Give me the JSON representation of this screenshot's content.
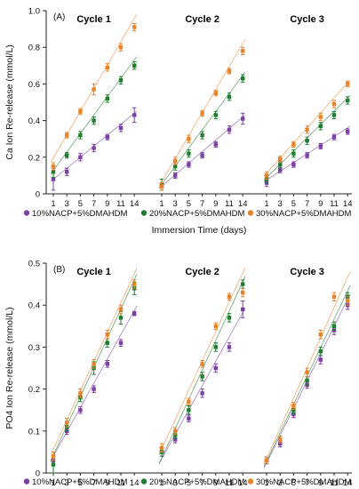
{
  "chart_data": [
    {
      "type": "scatter",
      "panel_label": "(A)",
      "ylabel": "Ca Ion Re-release (mmol/L)",
      "xlabel": "Immersion Time (days)",
      "ylim": [
        0,
        1
      ],
      "yticks": [
        "0",
        "0.2",
        "0.4",
        "0.6",
        "0.8",
        "1.0"
      ],
      "xtick_labels": [
        "1",
        "3",
        "5",
        "7",
        "9",
        "11",
        "14"
      ],
      "grid": false,
      "legend_position": "bottom",
      "cycles": [
        {
          "title": "Cycle 1",
          "series": [
            {
              "name": "10%NACP+5%DMAHDM",
              "x": [
                1,
                3,
                5,
                7,
                9,
                11,
                14
              ],
              "y": [
                0.08,
                0.12,
                0.2,
                0.25,
                0.31,
                0.36,
                0.43
              ],
              "err": [
                0.06,
                0.02,
                0.02,
                0.02,
                0.015,
                0.02,
                0.04
              ]
            },
            {
              "name": "20%NACP+5%DMAHDM",
              "x": [
                1,
                3,
                5,
                7,
                9,
                11,
                14
              ],
              "y": [
                0.12,
                0.21,
                0.32,
                0.4,
                0.52,
                0.62,
                0.7
              ],
              "err": [
                0.03,
                0.015,
                0.02,
                0.02,
                0.02,
                0.02,
                0.02
              ]
            },
            {
              "name": "30%NACP+5%DMAHDM",
              "x": [
                1,
                3,
                5,
                7,
                9,
                11,
                14
              ],
              "y": [
                0.15,
                0.32,
                0.45,
                0.57,
                0.69,
                0.8,
                0.91
              ],
              "err": [
                0.02,
                0.015,
                0.015,
                0.03,
                0.02,
                0.02,
                0.02
              ]
            }
          ]
        },
        {
          "title": "Cycle 2",
          "series": [
            {
              "name": "10%NACP+5%DMAHDM",
              "x": [
                1,
                3,
                5,
                7,
                9,
                11,
                14
              ],
              "y": [
                0.04,
                0.1,
                0.16,
                0.21,
                0.27,
                0.35,
                0.41
              ],
              "err": [
                0.02,
                0.015,
                0.015,
                0.015,
                0.015,
                0.02,
                0.03
              ]
            },
            {
              "name": "20%NACP+5%DMAHDM",
              "x": [
                1,
                3,
                5,
                7,
                9,
                11,
                14
              ],
              "y": [
                0.05,
                0.15,
                0.22,
                0.32,
                0.43,
                0.53,
                0.63
              ],
              "err": [
                0.03,
                0.02,
                0.02,
                0.02,
                0.02,
                0.02,
                0.02
              ]
            },
            {
              "name": "30%NACP+5%DMAHDM",
              "x": [
                1,
                3,
                5,
                7,
                9,
                11,
                14
              ],
              "y": [
                0.04,
                0.18,
                0.3,
                0.44,
                0.55,
                0.67,
                0.78
              ],
              "err": [
                0.02,
                0.02,
                0.02,
                0.015,
                0.015,
                0.015,
                0.02
              ]
            }
          ]
        },
        {
          "title": "Cycle 3",
          "series": [
            {
              "name": "10%NACP+5%DMAHDM",
              "x": [
                1,
                3,
                5,
                7,
                9,
                11,
                14
              ],
              "y": [
                0.06,
                0.13,
                0.16,
                0.21,
                0.26,
                0.31,
                0.34
              ],
              "err": [
                0.02,
                0.015,
                0.015,
                0.015,
                0.015,
                0.015,
                0.015
              ]
            },
            {
              "name": "20%NACP+5%DMAHDM",
              "x": [
                1,
                3,
                5,
                7,
                9,
                11,
                14
              ],
              "y": [
                0.08,
                0.16,
                0.22,
                0.29,
                0.37,
                0.43,
                0.51
              ],
              "err": [
                0.02,
                0.02,
                0.02,
                0.02,
                0.02,
                0.02,
                0.02
              ]
            },
            {
              "name": "30%NACP+5%DMAHDM",
              "x": [
                1,
                3,
                5,
                7,
                9,
                11,
                14
              ],
              "y": [
                0.1,
                0.19,
                0.27,
                0.35,
                0.42,
                0.49,
                0.6
              ],
              "err": [
                0.02,
                0.015,
                0.015,
                0.02,
                0.02,
                0.02,
                0.015
              ]
            }
          ]
        }
      ]
    },
    {
      "type": "scatter",
      "panel_label": "(B)",
      "ylabel": "PO4 Ion Re-release (mmol/L)",
      "xlabel": "",
      "ylim": [
        0,
        0.5
      ],
      "yticks": [
        "0",
        "0.1",
        "0.2",
        "0.3",
        "0.4",
        "0.5"
      ],
      "xtick_labels": [
        "1",
        "3",
        "5",
        "7",
        "9",
        "11",
        "14"
      ],
      "grid": false,
      "legend_position": "bottom",
      "cycles": [
        {
          "title": "Cycle 1",
          "series": [
            {
              "name": "10%NACP+5%DMAHDM",
              "x": [
                1,
                3,
                5,
                7,
                9,
                11,
                14
              ],
              "y": [
                0.03,
                0.1,
                0.15,
                0.2,
                0.26,
                0.31,
                0.38
              ],
              "err": [
                0.01,
                0.008,
                0.008,
                0.008,
                0.008,
                0.008,
                0.005
              ]
            },
            {
              "name": "20%NACP+5%DMAHDM",
              "x": [
                1,
                3,
                5,
                7,
                9,
                11,
                14
              ],
              "y": [
                0.02,
                0.11,
                0.18,
                0.25,
                0.31,
                0.37,
                0.44
              ],
              "err": [
                0.02,
                0.01,
                0.01,
                0.015,
                0.01,
                0.015,
                0.015
              ]
            },
            {
              "name": "30%NACP+5%DMAHDM",
              "x": [
                1,
                3,
                5,
                7,
                9,
                11,
                14
              ],
              "y": [
                0.04,
                0.12,
                0.19,
                0.26,
                0.33,
                0.39,
                0.45
              ],
              "err": [
                0.01,
                0.01,
                0.01,
                0.01,
                0.01,
                0.01,
                0.01
              ]
            }
          ]
        },
        {
          "title": "Cycle 2",
          "series": [
            {
              "name": "10%NACP+5%DMAHDM",
              "x": [
                1,
                3,
                5,
                7,
                9,
                11,
                14
              ],
              "y": [
                0.05,
                0.08,
                0.13,
                0.19,
                0.25,
                0.3,
                0.39
              ],
              "err": [
                0.01,
                0.008,
                0.008,
                0.01,
                0.01,
                0.01,
                0.02
              ]
            },
            {
              "name": "20%NACP+5%DMAHDM",
              "x": [
                1,
                3,
                5,
                7,
                9,
                11,
                14
              ],
              "y": [
                0.05,
                0.09,
                0.15,
                0.23,
                0.3,
                0.37,
                0.45
              ],
              "err": [
                0.01,
                0.008,
                0.01,
                0.01,
                0.01,
                0.01,
                0.01
              ]
            },
            {
              "name": "30%NACP+5%DMAHDM",
              "x": [
                1,
                3,
                5,
                7,
                9,
                11,
                14
              ],
              "y": [
                0.06,
                0.1,
                0.17,
                0.26,
                0.35,
                0.42,
                0.43
              ],
              "err": [
                0.01,
                0.008,
                0.008,
                0.008,
                0.008,
                0.008,
                0.01
              ]
            }
          ]
        },
        {
          "title": "Cycle 3",
          "series": [
            {
              "name": "10%NACP+5%DMAHDM",
              "x": [
                1,
                3,
                5,
                7,
                9,
                11,
                14
              ],
              "y": [
                0.03,
                0.07,
                0.14,
                0.21,
                0.27,
                0.34,
                0.4
              ],
              "err": [
                0.008,
                0.008,
                0.008,
                0.008,
                0.01,
                0.01,
                0.01
              ]
            },
            {
              "name": "20%NACP+5%DMAHDM",
              "x": [
                1,
                3,
                5,
                7,
                9,
                11,
                14
              ],
              "y": [
                0.03,
                0.08,
                0.15,
                0.22,
                0.29,
                0.35,
                0.42
              ],
              "err": [
                0.008,
                0.008,
                0.01,
                0.01,
                0.01,
                0.01,
                0.01
              ]
            },
            {
              "name": "30%NACP+5%DMAHDM",
              "x": [
                1,
                3,
                5,
                7,
                9,
                11,
                14
              ],
              "y": [
                0.03,
                0.08,
                0.16,
                0.24,
                0.33,
                0.42,
                0.41
              ],
              "err": [
                0.008,
                0.008,
                0.008,
                0.01,
                0.01,
                0.01,
                0.01
              ]
            }
          ]
        }
      ]
    }
  ],
  "legend": [
    {
      "name": "10%NACP+5%DMAHDM",
      "color": "#7B3FA6"
    },
    {
      "name": "20%NACP+5%DMAHDM",
      "color": "#1E7E2E"
    },
    {
      "name": "30%NACP+5%DMAHDM",
      "color": "#E8832A"
    }
  ]
}
